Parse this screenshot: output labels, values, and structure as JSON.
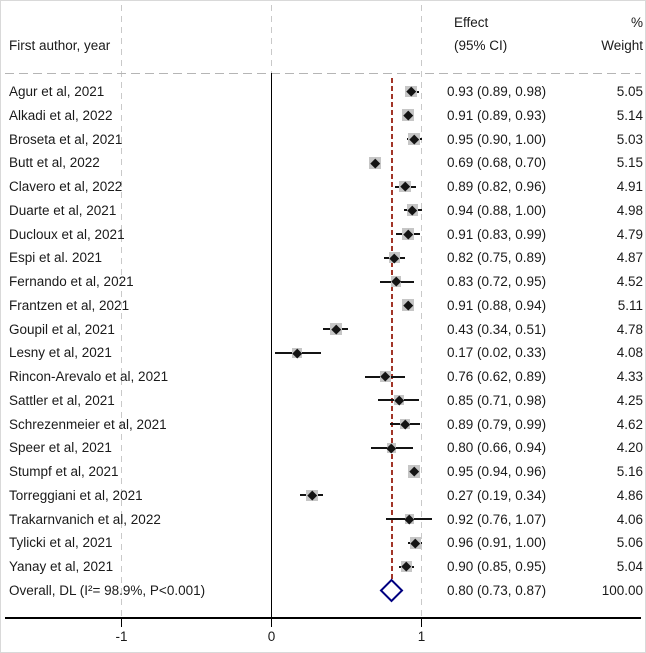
{
  "header": {
    "study_col": "First author, year",
    "effect_col_1": "Effect",
    "effect_col_2": "(95% CI)",
    "weight_col_1": "%",
    "weight_col_2": "Weight"
  },
  "chart_data": {
    "type": "forest",
    "title": "",
    "xlabel": "",
    "xlim": [
      -1.77,
      2.47
    ],
    "x_ticks": [
      -1,
      0,
      1
    ],
    "x_tick_labels": [
      "-1",
      "0",
      "1"
    ],
    "grid": "dashed-vertical-at-ticks",
    "null_line_x": 0,
    "overall_effect_line_x": 0.8,
    "colors": {
      "overall_dashed_line": "#a23528",
      "overall_diamond_border": "#000080",
      "weight_box": "#c6c6c6",
      "marker": "#141414",
      "gridline": "#c9c9c9"
    },
    "studies": [
      {
        "label": "Agur et al, 2021",
        "effect": 0.93,
        "ci_lower": 0.89,
        "ci_upper": 0.98,
        "effect_label": "0.93 (0.89, 0.98)",
        "weight": 5.05,
        "weight_label": "5.05"
      },
      {
        "label": "Alkadi et al, 2022",
        "effect": 0.91,
        "ci_lower": 0.89,
        "ci_upper": 0.93,
        "effect_label": "0.91 (0.89, 0.93)",
        "weight": 5.14,
        "weight_label": "5.14"
      },
      {
        "label": "Broseta et al, 2021",
        "effect": 0.95,
        "ci_lower": 0.9,
        "ci_upper": 1.0,
        "effect_label": "0.95 (0.90, 1.00)",
        "weight": 5.03,
        "weight_label": "5.03"
      },
      {
        "label": "Butt et al, 2022",
        "effect": 0.69,
        "ci_lower": 0.68,
        "ci_upper": 0.7,
        "effect_label": "0.69 (0.68, 0.70)",
        "weight": 5.15,
        "weight_label": "5.15"
      },
      {
        "label": "Clavero et al, 2022",
        "effect": 0.89,
        "ci_lower": 0.82,
        "ci_upper": 0.96,
        "effect_label": "0.89 (0.82, 0.96)",
        "weight": 4.91,
        "weight_label": "4.91"
      },
      {
        "label": "Duarte et al, 2021",
        "effect": 0.94,
        "ci_lower": 0.88,
        "ci_upper": 1.0,
        "effect_label": "0.94 (0.88, 1.00)",
        "weight": 4.98,
        "weight_label": "4.98"
      },
      {
        "label": "Ducloux et al, 2021",
        "effect": 0.91,
        "ci_lower": 0.83,
        "ci_upper": 0.99,
        "effect_label": "0.91 (0.83, 0.99)",
        "weight": 4.79,
        "weight_label": "4.79"
      },
      {
        "label": "Espi et al. 2021",
        "effect": 0.82,
        "ci_lower": 0.75,
        "ci_upper": 0.89,
        "effect_label": "0.82 (0.75, 0.89)",
        "weight": 4.87,
        "weight_label": "4.87"
      },
      {
        "label": "Fernando et al, 2021",
        "effect": 0.83,
        "ci_lower": 0.72,
        "ci_upper": 0.95,
        "effect_label": "0.83 (0.72, 0.95)",
        "weight": 4.52,
        "weight_label": "4.52"
      },
      {
        "label": "Frantzen et al, 2021",
        "effect": 0.91,
        "ci_lower": 0.88,
        "ci_upper": 0.94,
        "effect_label": "0.91 (0.88, 0.94)",
        "weight": 5.11,
        "weight_label": "5.11"
      },
      {
        "label": "Goupil et al, 2021",
        "effect": 0.43,
        "ci_lower": 0.34,
        "ci_upper": 0.51,
        "effect_label": "0.43 (0.34, 0.51)",
        "weight": 4.78,
        "weight_label": "4.78"
      },
      {
        "label": "Lesny et al, 2021",
        "effect": 0.17,
        "ci_lower": 0.02,
        "ci_upper": 0.33,
        "effect_label": "0.17 (0.02, 0.33)",
        "weight": 4.08,
        "weight_label": "4.08"
      },
      {
        "label": "Rincon-Arevalo et al, 2021",
        "effect": 0.76,
        "ci_lower": 0.62,
        "ci_upper": 0.89,
        "effect_label": "0.76 (0.62, 0.89)",
        "weight": 4.33,
        "weight_label": "4.33"
      },
      {
        "label": "Sattler et al, 2021",
        "effect": 0.85,
        "ci_lower": 0.71,
        "ci_upper": 0.98,
        "effect_label": "0.85 (0.71, 0.98)",
        "weight": 4.25,
        "weight_label": "4.25"
      },
      {
        "label": "Schrezenmeier et al, 2021",
        "effect": 0.89,
        "ci_lower": 0.79,
        "ci_upper": 0.99,
        "effect_label": "0.89 (0.79, 0.99)",
        "weight": 4.62,
        "weight_label": "4.62"
      },
      {
        "label": "Speer et al, 2021",
        "effect": 0.8,
        "ci_lower": 0.66,
        "ci_upper": 0.94,
        "effect_label": "0.80 (0.66, 0.94)",
        "weight": 4.2,
        "weight_label": "4.20"
      },
      {
        "label": "Stumpf et al, 2021",
        "effect": 0.95,
        "ci_lower": 0.94,
        "ci_upper": 0.96,
        "effect_label": "0.95 (0.94, 0.96)",
        "weight": 5.16,
        "weight_label": "5.16"
      },
      {
        "label": "Torreggiani et al, 2021",
        "effect": 0.27,
        "ci_lower": 0.19,
        "ci_upper": 0.34,
        "effect_label": "0.27 (0.19, 0.34)",
        "weight": 4.86,
        "weight_label": "4.86"
      },
      {
        "label": "Trakarnvanich et al, 2022",
        "effect": 0.92,
        "ci_lower": 0.76,
        "ci_upper": 1.07,
        "effect_label": "0.92 (0.76, 1.07)",
        "weight": 4.06,
        "weight_label": "4.06"
      },
      {
        "label": "Tylicki et al, 2021",
        "effect": 0.96,
        "ci_lower": 0.91,
        "ci_upper": 1.0,
        "effect_label": "0.96 (0.91, 1.00)",
        "weight": 5.06,
        "weight_label": "5.06"
      },
      {
        "label": "Yanay et al, 2021",
        "effect": 0.9,
        "ci_lower": 0.85,
        "ci_upper": 0.95,
        "effect_label": "0.90 (0.85, 0.95)",
        "weight": 5.04,
        "weight_label": "5.04"
      }
    ],
    "overall": {
      "label": "Overall, DL (I²= 98.9%, P<0.001)",
      "effect": 0.8,
      "ci_lower": 0.73,
      "ci_upper": 0.87,
      "effect_label": "0.80 (0.73, 0.87)",
      "weight": 100.0,
      "weight_label": "100.00"
    }
  }
}
